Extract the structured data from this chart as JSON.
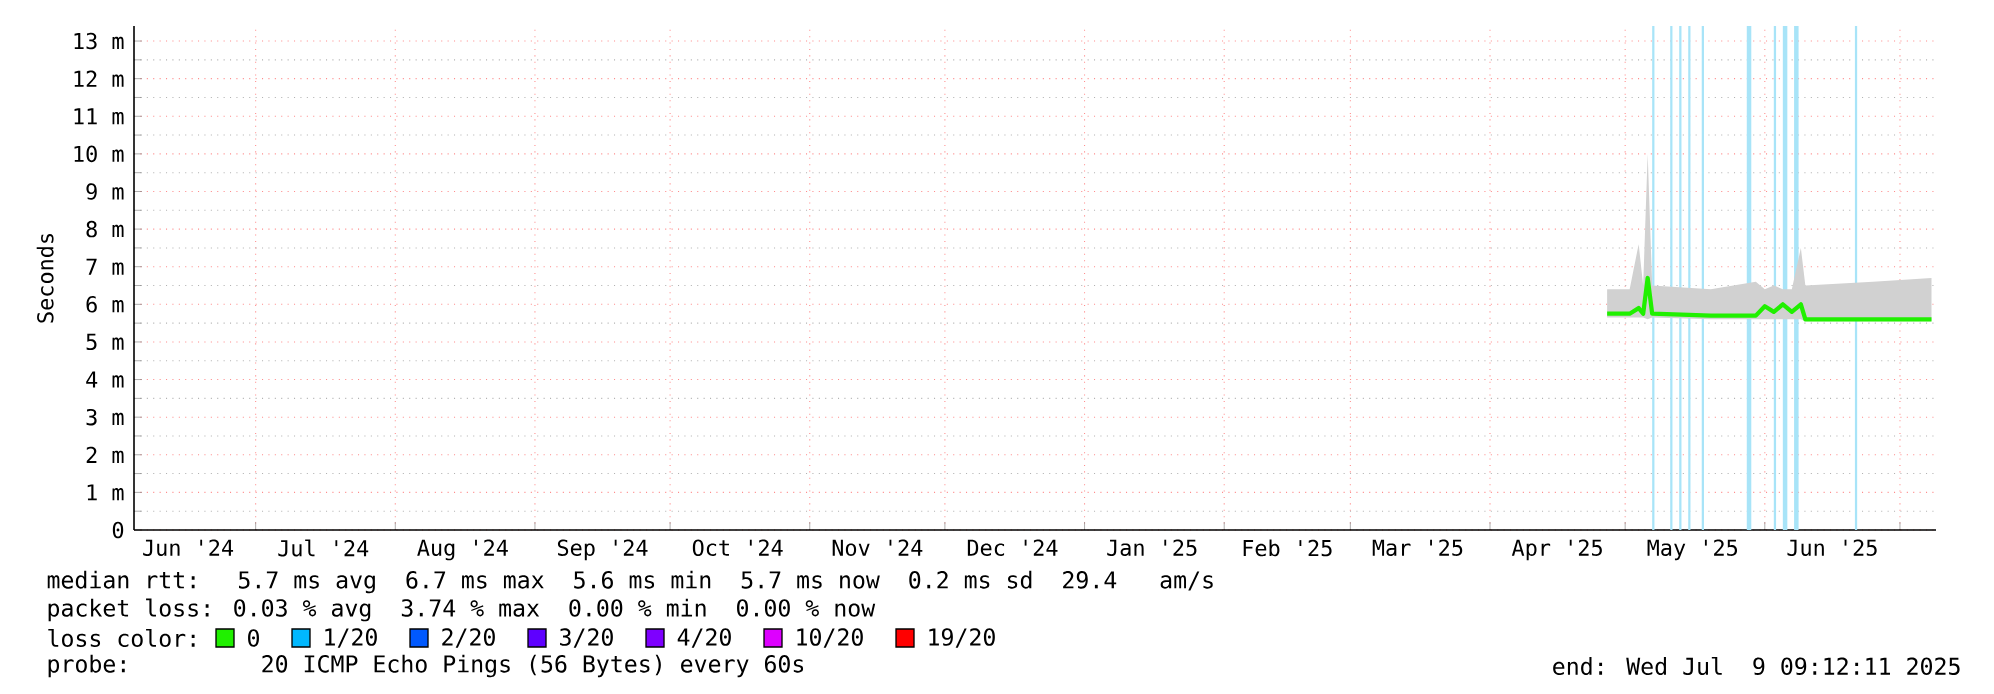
{
  "chart_data": {
    "type": "line",
    "ylabel": "Seconds",
    "xlim": [
      "2024-06-04",
      "2025-07-09"
    ],
    "xticks": [
      {
        "value": "2024-06-16",
        "label": "Jun '24"
      },
      {
        "value": "2024-07-01",
        "label": null
      },
      {
        "value": "2024-07-16",
        "label": "Jul '24"
      },
      {
        "value": "2024-08-01",
        "label": null
      },
      {
        "value": "2024-08-16",
        "label": "Aug '24"
      },
      {
        "value": "2024-09-01",
        "label": null
      },
      {
        "value": "2024-09-16",
        "label": "Sep '24"
      },
      {
        "value": "2024-10-01",
        "label": null
      },
      {
        "value": "2024-10-16",
        "label": "Oct '24"
      },
      {
        "value": "2024-11-01",
        "label": null
      },
      {
        "value": "2024-11-16",
        "label": "Nov '24"
      },
      {
        "value": "2024-12-01",
        "label": null
      },
      {
        "value": "2024-12-16",
        "label": "Dec '24"
      },
      {
        "value": "2025-01-01",
        "label": null
      },
      {
        "value": "2025-01-16",
        "label": "Jan '25"
      },
      {
        "value": "2025-02-01",
        "label": null
      },
      {
        "value": "2025-02-15",
        "label": "Feb '25"
      },
      {
        "value": "2025-03-01",
        "label": null
      },
      {
        "value": "2025-03-16",
        "label": "Mar '25"
      },
      {
        "value": "2025-04-01",
        "label": null
      },
      {
        "value": "2025-04-16",
        "label": "Apr '25"
      },
      {
        "value": "2025-05-01",
        "label": null
      },
      {
        "value": "2025-05-16",
        "label": "May '25"
      },
      {
        "value": "2025-06-01",
        "label": null
      },
      {
        "value": "2025-06-16",
        "label": "Jun '25"
      },
      {
        "value": "2025-07-01",
        "label": null
      }
    ],
    "ylim": [
      0,
      13.4
    ],
    "yticks": [
      0,
      {
        "value": 1,
        "label": "1 m"
      },
      {
        "value": 2,
        "label": "2 m"
      },
      {
        "value": 3,
        "label": "3 m"
      },
      {
        "value": 4,
        "label": "4 m"
      },
      {
        "value": 5,
        "label": "5 m"
      },
      {
        "value": 6,
        "label": "6 m"
      },
      {
        "value": 7,
        "label": "7 m"
      },
      {
        "value": 8,
        "label": "8 m"
      },
      {
        "value": 9,
        "label": "9 m"
      },
      {
        "value": 10,
        "label": "10 m"
      },
      {
        "value": 11,
        "label": "11 m"
      },
      {
        "value": 12,
        "label": "12 m"
      },
      {
        "value": 13,
        "label": "13 m"
      }
    ],
    "grid": true,
    "legend": "bottom",
    "bands": [
      {
        "axis": "x",
        "from": "2025-05-07",
        "to": "2025-05-07T12:00",
        "color": "#a8e4f8"
      },
      {
        "axis": "x",
        "from": "2025-05-11",
        "to": "2025-05-11T12:00",
        "color": "#a8e4f8"
      },
      {
        "axis": "x",
        "from": "2025-05-13",
        "to": "2025-05-13T12:00",
        "color": "#a8e4f8"
      },
      {
        "axis": "x",
        "from": "2025-05-15",
        "to": "2025-05-15T12:00",
        "color": "#a8e4f8"
      },
      {
        "axis": "x",
        "from": "2025-05-18",
        "to": "2025-05-18T12:00",
        "color": "#a8e4f8"
      },
      {
        "axis": "x",
        "from": "2025-05-28",
        "to": "2025-05-29",
        "color": "#a8e4f8"
      },
      {
        "axis": "x",
        "from": "2025-06-03",
        "to": "2025-06-03T12:00",
        "color": "#a8e4f8"
      },
      {
        "axis": "x",
        "from": "2025-06-05",
        "to": "2025-06-06",
        "color": "#a8e4f8"
      },
      {
        "axis": "x",
        "from": "2025-06-07T12:00",
        "to": "2025-06-08T12:00",
        "color": "#a8e4f8"
      },
      {
        "axis": "x",
        "from": "2025-06-21",
        "to": "2025-06-21T12:00",
        "color": "#a8e4f8"
      }
    ],
    "series": [
      {
        "name": "0",
        "color": "#20f000",
        "x": [
          "2025-04-27",
          "2025-05-02",
          "2025-05-04",
          "2025-05-05",
          "2025-05-06",
          "2025-05-07",
          "2025-05-20",
          "2025-05-30",
          "2025-06-01",
          "2025-06-03",
          "2025-06-05",
          "2025-06-07",
          "2025-06-09",
          "2025-06-10",
          "2025-06-25",
          "2025-07-08"
        ],
        "values": [
          5.75,
          5.75,
          5.9,
          5.75,
          6.7,
          5.75,
          5.7,
          5.7,
          5.95,
          5.8,
          6.0,
          5.8,
          6.0,
          5.6,
          5.6,
          5.6
        ],
        "lower": [
          5.65,
          5.65,
          5.65,
          5.65,
          5.6,
          5.65,
          5.6,
          5.6,
          5.6,
          5.6,
          5.6,
          5.6,
          5.6,
          5.55,
          5.55,
          5.55
        ],
        "upper": [
          6.4,
          6.4,
          7.6,
          6.5,
          10.0,
          6.5,
          6.4,
          6.6,
          6.4,
          6.5,
          6.4,
          6.4,
          7.5,
          6.5,
          6.6,
          6.7
        ]
      },
      {
        "name": "1/20",
        "color": "#00b8ff"
      },
      {
        "name": "2/20",
        "color": "#0059ff"
      },
      {
        "name": "3/20",
        "color": "#5e00ff"
      },
      {
        "name": "4/20",
        "color": "#7e00ff"
      },
      {
        "name": "10/20",
        "color": "#dd00ff"
      },
      {
        "name": "19/20",
        "color": "#ff0000"
      }
    ],
    "annotations": [
      "median rtt:  5.7 ms avg  6.7 ms max  5.6 ms min  5.7 ms now  0.2 ms sd  29.4   am/s",
      "packet loss: 0.03 % avg  3.74 % max  0.00 % min  0.00 % now",
      "loss color:",
      "probe:       20 ICMP Echo Pings (56 Bytes) every 60s",
      "end: Wed Jul  9 09:12:11 2025"
    ]
  }
}
